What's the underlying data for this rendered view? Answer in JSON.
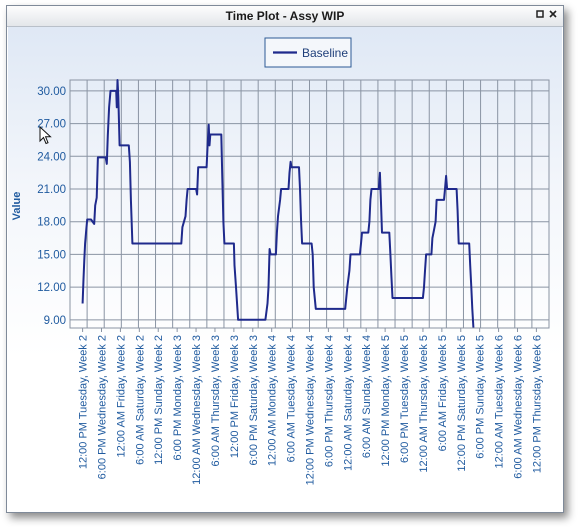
{
  "window": {
    "title": "Time Plot - Assy WIP",
    "restore_icon": "restore-icon",
    "close_icon": "close-icon"
  },
  "chart_data": {
    "type": "line",
    "title": "",
    "xlabel": "",
    "ylabel": "Value",
    "ylim": [
      8.25,
      31.0
    ],
    "yticks": [
      "30.00",
      "27.00",
      "24.00",
      "21.00",
      "18.00",
      "15.00",
      "12.00",
      "9.00"
    ],
    "ytick_values": [
      30,
      27,
      24,
      21,
      18,
      15,
      12,
      9
    ],
    "grid": true,
    "legend": {
      "position": "top-center",
      "entries": [
        "Baseline"
      ]
    },
    "x_unit": "hours since 12:00 PM Tuesday, Week 2",
    "xlim": [
      -6,
      222
    ],
    "categories": [
      "12:00 PM Tuesday, Week 2",
      "6:00 PM Wednesday, Week 2",
      "12:00 AM Friday, Week 2",
      "6:00 AM Saturday, Week 2",
      "12:00 PM Sunday, Week 2",
      "6:00 PM Monday, Week 3",
      "12:00 AM Wednesday, Week 3",
      "6:00 AM Thursday, Week 3",
      "12:00 PM Friday, Week 3",
      "6:00 PM Saturday, Week 3",
      "12:00 AM Monday, Week 4",
      "6:00 AM Tuesday, Week 4",
      "12:00 PM Wednesday, Week 4",
      "6:00 PM Thursday, Week 4",
      "12:00 AM Saturday, Week 4",
      "6:00 AM Sunday, Week 4",
      "12:00 PM Monday, Week 5",
      "6:00 PM Tuesday, Week 5",
      "12:00 AM Thursday, Week 5",
      "6:00 AM Friday, Week 5",
      "12:00 PM Saturday, Week 5",
      "6:00 PM Sunday, Week 5",
      "12:00 AM Tuesday, Week 6",
      "6:00 AM Wednesday, Week 6",
      "12:00 PM Thursday, Week 6"
    ],
    "series": [
      {
        "name": "Baseline",
        "color": "#1f2a8c",
        "points": [
          [
            0,
            10.5
          ],
          [
            0.4,
            12.5
          ],
          [
            0.8,
            14.5
          ],
          [
            1.2,
            16
          ],
          [
            1.7,
            17.2
          ],
          [
            2.2,
            18.2
          ],
          [
            4,
            18.2
          ],
          [
            5.5,
            17.8
          ],
          [
            6,
            19.5
          ],
          [
            6.7,
            20.2
          ],
          [
            7.3,
            23.9
          ],
          [
            11,
            23.9
          ],
          [
            11.5,
            23.3
          ],
          [
            12,
            25.9
          ],
          [
            12.6,
            28.5
          ],
          [
            13.3,
            30
          ],
          [
            16,
            30
          ],
          [
            16.3,
            28.5
          ],
          [
            16.6,
            31
          ],
          [
            17,
            29.5
          ],
          [
            17.6,
            25
          ],
          [
            22,
            25
          ],
          [
            22.5,
            23.5
          ],
          [
            23,
            20
          ],
          [
            23.7,
            16
          ],
          [
            38,
            16
          ],
          [
            39.2,
            16
          ],
          [
            47,
            16
          ],
          [
            47.5,
            17.5
          ],
          [
            49,
            18.5
          ],
          [
            49.5,
            20
          ],
          [
            50,
            21
          ],
          [
            54,
            21
          ],
          [
            54.5,
            20.5
          ],
          [
            55,
            23
          ],
          [
            59,
            23
          ],
          [
            59.5,
            25
          ],
          [
            60,
            26.9
          ],
          [
            60.4,
            25
          ],
          [
            60.8,
            26
          ],
          [
            66,
            26
          ],
          [
            66.5,
            22
          ],
          [
            67,
            18
          ],
          [
            67.5,
            16
          ],
          [
            72,
            16
          ],
          [
            72.3,
            14
          ],
          [
            73,
            12
          ],
          [
            74,
            9
          ],
          [
            78,
            9
          ],
          [
            87,
            9
          ],
          [
            88,
            10.5
          ],
          [
            88.5,
            12
          ],
          [
            89,
            15.5
          ],
          [
            89.5,
            15
          ],
          [
            92,
            15
          ],
          [
            92.5,
            17
          ],
          [
            93,
            18.5
          ],
          [
            94,
            20
          ],
          [
            94.5,
            21
          ],
          [
            98,
            21
          ],
          [
            98.5,
            22.5
          ],
          [
            99,
            23.5
          ],
          [
            99.5,
            23
          ],
          [
            103,
            23
          ],
          [
            103.5,
            21
          ],
          [
            104,
            18
          ],
          [
            104.5,
            16
          ],
          [
            109,
            16
          ],
          [
            109.5,
            15
          ],
          [
            110,
            12
          ],
          [
            111,
            10
          ],
          [
            125,
            10
          ],
          [
            126,
            12
          ],
          [
            127,
            13.5
          ],
          [
            127.5,
            15
          ],
          [
            132,
            15
          ],
          [
            132.5,
            16
          ],
          [
            133,
            17
          ],
          [
            136,
            17
          ],
          [
            136.5,
            18
          ],
          [
            137,
            20
          ],
          [
            137.5,
            21
          ],
          [
            141,
            21
          ],
          [
            141.5,
            22.5
          ],
          [
            142,
            20
          ],
          [
            142.5,
            17
          ],
          [
            146,
            17
          ],
          [
            146.5,
            15
          ],
          [
            147,
            13
          ],
          [
            147.5,
            11
          ],
          [
            162,
            11
          ],
          [
            162.5,
            12
          ],
          [
            163,
            13.5
          ],
          [
            163.5,
            15
          ],
          [
            166,
            15
          ],
          [
            166.5,
            16.5
          ],
          [
            167,
            17
          ],
          [
            168,
            18
          ],
          [
            168.5,
            20
          ],
          [
            172,
            20
          ],
          [
            172.5,
            21
          ],
          [
            173,
            22.2
          ],
          [
            173.5,
            21
          ],
          [
            178,
            21
          ],
          [
            178.5,
            19
          ],
          [
            179,
            16
          ],
          [
            184,
            16
          ],
          [
            184.5,
            14
          ],
          [
            185,
            12
          ],
          [
            185.5,
            10
          ],
          [
            186,
            8.3
          ]
        ]
      }
    ]
  }
}
